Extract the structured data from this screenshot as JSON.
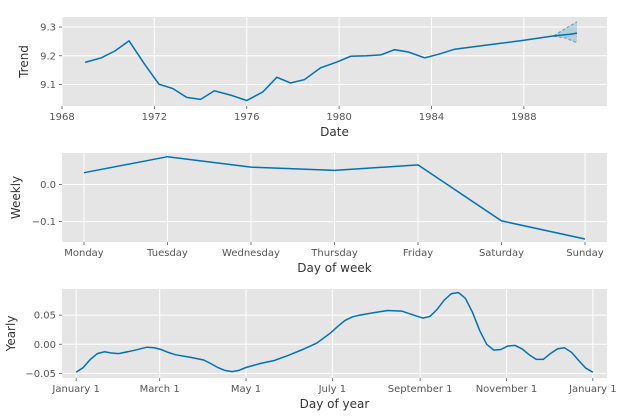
{
  "chart_data": [
    {
      "type": "line",
      "title": "",
      "xlabel": "Date",
      "ylabel": "Trend",
      "grid": true,
      "xlim": [
        1968,
        1991.6
      ],
      "ylim": [
        9.025,
        9.335
      ],
      "xticks": [
        1968,
        1972,
        1976,
        1980,
        1984,
        1988
      ],
      "xtick_labels": [
        "1968",
        "1972",
        "1976",
        "1980",
        "1984",
        "1988"
      ],
      "yticks": [
        9.1,
        9.2,
        9.3
      ],
      "ytick_labels": [
        "9.1",
        "9.2",
        "9.3"
      ],
      "series": [
        {
          "x": [
            1969.0,
            1969.7,
            1970.3,
            1970.9,
            1971.6,
            1972.2,
            1972.8,
            1973.4,
            1974.0,
            1974.6,
            1975.3,
            1976.0,
            1976.7,
            1977.3,
            1977.9,
            1978.5,
            1979.2,
            1979.9,
            1980.5,
            1981.2,
            1981.8,
            1982.4,
            1983.0,
            1983.7,
            1984.3,
            1985.0,
            1986.5,
            1988.0,
            1989.3,
            1990.0,
            1990.3
          ],
          "values": [
            9.177,
            9.193,
            9.217,
            9.252,
            9.168,
            9.101,
            9.086,
            9.055,
            9.048,
            9.078,
            9.063,
            9.044,
            9.074,
            9.125,
            9.105,
            9.117,
            9.158,
            9.178,
            9.198,
            9.2,
            9.203,
            9.221,
            9.213,
            9.193,
            9.205,
            9.223,
            9.238,
            9.254,
            9.269,
            9.275,
            9.279
          ]
        }
      ],
      "uncertainty": {
        "x": [
          1989.3,
          1989.8,
          1990.3
        ],
        "upper": [
          9.27,
          9.295,
          9.318
        ],
        "lower": [
          9.268,
          9.262,
          9.245
        ]
      }
    },
    {
      "type": "line",
      "title": "",
      "xlabel": "Day of week",
      "ylabel": "Weekly",
      "grid": true,
      "ylim": [
        -0.155,
        0.085
      ],
      "categories": [
        "Monday",
        "Tuesday",
        "Wednesday",
        "Thursday",
        "Friday",
        "Saturday",
        "Sunday"
      ],
      "yticks": [
        -0.1,
        0.0
      ],
      "ytick_labels": [
        "−0.1",
        "0.0"
      ],
      "series": [
        {
          "values": [
            0.032,
            0.075,
            0.047,
            0.038,
            0.053,
            -0.098,
            -0.147
          ]
        }
      ]
    },
    {
      "type": "line",
      "title": "",
      "xlabel": "Day of year",
      "ylabel": "Yearly",
      "grid": true,
      "xlim": [
        -10,
        375
      ],
      "ylim": [
        -0.058,
        0.095
      ],
      "xticks": [
        0,
        59,
        120,
        181,
        243,
        304,
        365
      ],
      "xtick_labels": [
        "January 1",
        "March 1",
        "May 1",
        "July 1",
        "September 1",
        "November 1",
        "January 1"
      ],
      "yticks": [
        -0.05,
        0.0,
        0.05
      ],
      "ytick_labels": [
        "−0.05",
        "0.00",
        "0.05"
      ],
      "series": [
        {
          "x": [
            0,
            5,
            10,
            15,
            20,
            25,
            30,
            40,
            50,
            55,
            60,
            65,
            70,
            80,
            90,
            95,
            100,
            105,
            110,
            115,
            120,
            130,
            140,
            150,
            160,
            170,
            180,
            185,
            190,
            195,
            200,
            210,
            220,
            230,
            240,
            245,
            250,
            255,
            260,
            265,
            270,
            275,
            280,
            285,
            290,
            295,
            300,
            305,
            310,
            315,
            320,
            325,
            330,
            335,
            340,
            345,
            350,
            355,
            360,
            365
          ],
          "values": [
            -0.048,
            -0.04,
            -0.026,
            -0.016,
            -0.013,
            -0.015,
            -0.016,
            -0.011,
            -0.005,
            -0.006,
            -0.009,
            -0.014,
            -0.018,
            -0.022,
            -0.027,
            -0.033,
            -0.04,
            -0.045,
            -0.047,
            -0.045,
            -0.04,
            -0.033,
            -0.028,
            -0.019,
            -0.009,
            0.002,
            0.02,
            0.031,
            0.041,
            0.047,
            0.05,
            0.054,
            0.058,
            0.057,
            0.049,
            0.045,
            0.048,
            0.06,
            0.076,
            0.087,
            0.089,
            0.079,
            0.055,
            0.024,
            0.0,
            -0.01,
            -0.009,
            -0.003,
            -0.002,
            -0.008,
            -0.018,
            -0.026,
            -0.026,
            -0.016,
            -0.008,
            -0.006,
            -0.014,
            -0.028,
            -0.041,
            -0.048
          ]
        }
      ]
    }
  ]
}
